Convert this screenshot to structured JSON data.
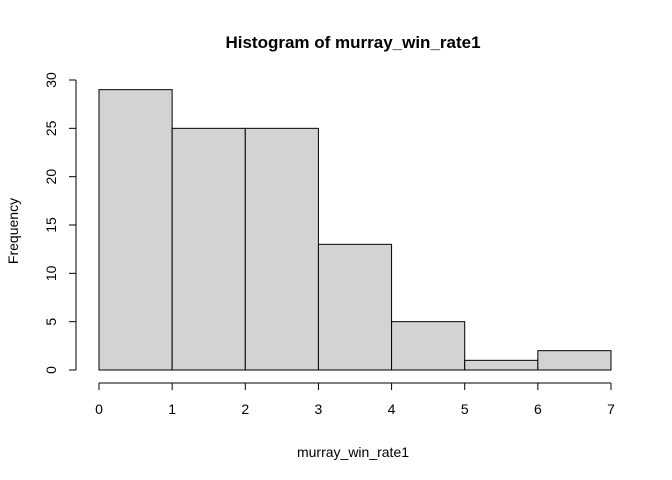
{
  "chart_data": {
    "type": "bar",
    "subtype": "histogram",
    "title": "Histogram of murray_win_rate1",
    "xlabel": "murray_win_rate1",
    "ylabel": "Frequency",
    "bins": [
      {
        "from": 0,
        "to": 1,
        "count": 29
      },
      {
        "from": 1,
        "to": 2,
        "count": 25
      },
      {
        "from": 2,
        "to": 3,
        "count": 25
      },
      {
        "from": 3,
        "to": 4,
        "count": 13
      },
      {
        "from": 4,
        "to": 5,
        "count": 5
      },
      {
        "from": 5,
        "to": 6,
        "count": 1
      },
      {
        "from": 6,
        "to": 7,
        "count": 2
      }
    ],
    "xlim": [
      0,
      7
    ],
    "ylim": [
      0,
      30
    ],
    "x_ticks": [
      "0",
      "1",
      "2",
      "3",
      "4",
      "5",
      "6",
      "7"
    ],
    "y_ticks": [
      "0",
      "5",
      "10",
      "15",
      "20",
      "25",
      "30"
    ],
    "bar_color": "#d3d3d3",
    "grid": false,
    "legend": "none"
  }
}
